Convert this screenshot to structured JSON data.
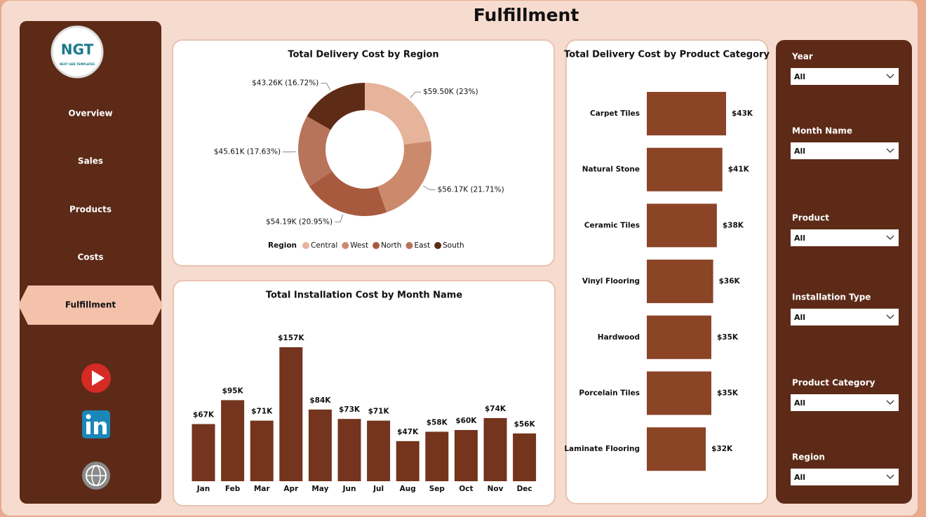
{
  "page": {
    "title": "Fulfillment"
  },
  "logo": {
    "text": "NGT",
    "subtitle": "NEXT GEN TEMPLATES"
  },
  "nav": {
    "items": [
      "Overview",
      "Sales",
      "Products",
      "Costs",
      "Fulfillment"
    ],
    "active": 4
  },
  "filters": [
    {
      "label": "Year",
      "value": "All"
    },
    {
      "label": "Month Name",
      "value": "All"
    },
    {
      "label": "Product",
      "value": "All"
    },
    {
      "label": "Installation Type",
      "value": "All"
    },
    {
      "label": "Product Category",
      "value": "All"
    },
    {
      "label": "Region",
      "value": "All"
    }
  ],
  "chart_data": [
    {
      "type": "donut",
      "title": "Total Delivery Cost by Region",
      "legend_title": "Region",
      "categories": [
        "Central",
        "West",
        "North",
        "East",
        "South"
      ],
      "values": [
        59.5,
        56.17,
        54.19,
        45.61,
        43.26
      ],
      "value_labels": [
        "$59.50K (23%)",
        "$56.17K (21.71%)",
        "$54.19K (20.95%)",
        "$45.61K (17.63%)",
        "$43.26K (16.72%)"
      ],
      "colors": [
        "#e6b39b",
        "#cc8a6c",
        "#a85a3e",
        "#b8745a",
        "#5e2b17"
      ]
    },
    {
      "type": "bar",
      "orientation": "vertical",
      "title": "Total Installation Cost by Month Name",
      "categories": [
        "Jan",
        "Feb",
        "Mar",
        "Apr",
        "May",
        "Jun",
        "Jul",
        "Aug",
        "Sep",
        "Oct",
        "Nov",
        "Dec"
      ],
      "values": [
        67,
        95,
        71,
        157,
        84,
        73,
        71,
        47,
        58,
        60,
        74,
        56
      ],
      "value_labels": [
        "$67K",
        "$95K",
        "$71K",
        "$157K",
        "$84K",
        "$73K",
        "$71K",
        "$47K",
        "$58K",
        "$60K",
        "$74K",
        "$56K"
      ],
      "color": "#74341d"
    },
    {
      "type": "bar",
      "orientation": "horizontal",
      "title": "Total Delivery Cost by Product Category",
      "categories": [
        "Carpet Tiles",
        "Natural Stone",
        "Ceramic Tiles",
        "Vinyl Flooring",
        "Hardwood",
        "Porcelain Tiles",
        "Laminate Flooring"
      ],
      "values": [
        43,
        41,
        38,
        36,
        35,
        35,
        32
      ],
      "value_labels": [
        "$43K",
        "$41K",
        "$38K",
        "$36K",
        "$35K",
        "$35K",
        "$32K"
      ],
      "color": "#8b4426"
    }
  ]
}
